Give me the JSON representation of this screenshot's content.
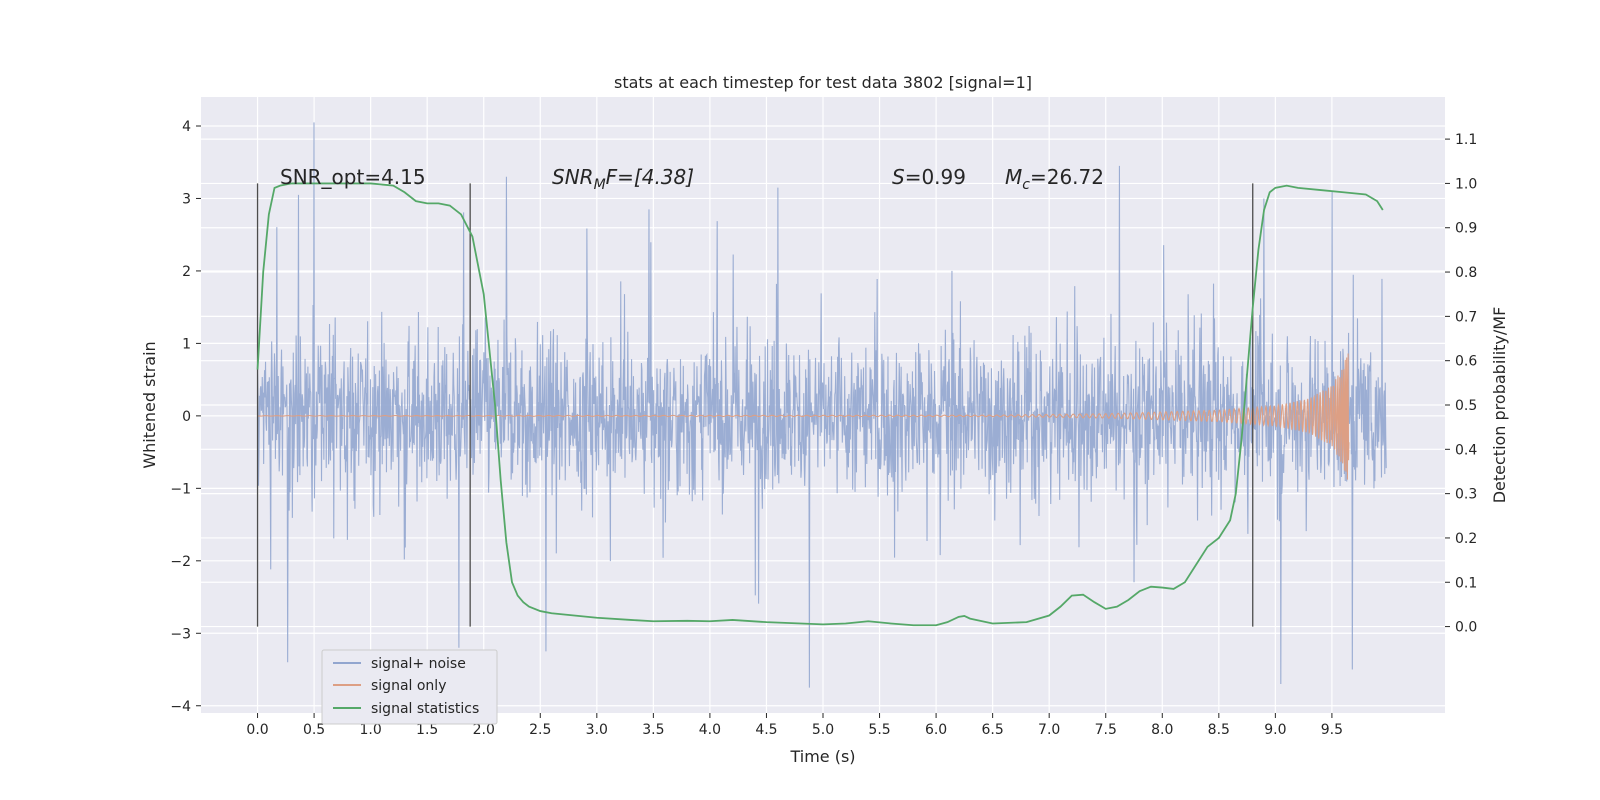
{
  "chart_data": {
    "type": "line",
    "title": "stats at each timestep for test data 3802 [signal=1]",
    "xlabel": "Time (s)",
    "ylabel_left": "Whitened strain",
    "ylabel_right": "Detection probability/MF",
    "xlim": [
      -0.5,
      10.5
    ],
    "ylim_left": [
      -4.1,
      4.4
    ],
    "ylim_right": [
      -0.195,
      1.195
    ],
    "x_ticks": [
      "0.0",
      "0.5",
      "1.0",
      "1.5",
      "2.0",
      "2.5",
      "3.0",
      "3.5",
      "4.0",
      "4.5",
      "5.0",
      "5.5",
      "6.0",
      "6.5",
      "7.0",
      "7.5",
      "8.0",
      "8.5",
      "9.0",
      "9.5"
    ],
    "x_tick_values": [
      0,
      0.5,
      1,
      1.5,
      2,
      2.5,
      3,
      3.5,
      4,
      4.5,
      5,
      5.5,
      6,
      6.5,
      7,
      7.5,
      8,
      8.5,
      9,
      9.5
    ],
    "y_left_ticks": [
      "4",
      "3",
      "2",
      "1",
      "0",
      "−1",
      "−2",
      "−3",
      "−4"
    ],
    "y_left_tick_values": [
      4,
      3,
      2,
      1,
      0,
      -1,
      -2,
      -3,
      -4
    ],
    "y_right_ticks": [
      "1.1",
      "1.0",
      "0.9",
      "0.8",
      "0.7",
      "0.6",
      "0.5",
      "0.4",
      "0.3",
      "0.2",
      "0.1",
      "0.0"
    ],
    "y_right_tick_values": [
      1.1,
      1.0,
      0.9,
      0.8,
      0.7,
      0.6,
      0.5,
      0.4,
      0.3,
      0.2,
      0.1,
      0.0
    ],
    "grid": true,
    "legend_position": "lower-left",
    "annotations": {
      "snr_opt": "SNR_opt=4.15",
      "snr_mf_main": "SNR",
      "snr_mf_sub": "M",
      "snr_mf_rest": "F=[4.38]",
      "s_main": "S",
      "s_value": "=0.99",
      "mc_main": "M",
      "mc_sub": "c",
      "mc_value": "=26.72"
    },
    "vertical_markers_x": [
      0,
      1.88,
      8.8
    ],
    "series": [
      {
        "name": "signal+ noise",
        "color": "#92a6cf",
        "x_range": [
          0,
          9.98
        ],
        "noise_amplitude_typical": 1.4,
        "noise_peak_examples": [
          {
            "x": 0.5,
            "y": 4.05
          },
          {
            "x": 0.36,
            "y": 3.05
          },
          {
            "x": 1.78,
            "y": -3.2
          },
          {
            "x": 2.55,
            "y": -3.25
          },
          {
            "x": 4.88,
            "y": -3.75
          },
          {
            "x": 7.62,
            "y": 3.45
          },
          {
            "x": 9.05,
            "y": -3.7
          },
          {
            "x": 9.68,
            "y": -3.5
          },
          {
            "x": 2.2,
            "y": 3.3
          },
          {
            "x": 4.6,
            "y": 3.15
          },
          {
            "x": 8.9,
            "y": 3.0
          },
          {
            "x": 9.5,
            "y": 3.1
          }
        ]
      },
      {
        "name": "signal only",
        "color": "#dd9f84",
        "x_range": [
          0,
          9.65
        ],
        "envelope": [
          [
            0,
            0.003
          ],
          [
            6.5,
            0.01
          ],
          [
            7.5,
            0.03
          ],
          [
            8.5,
            0.08
          ],
          [
            9.0,
            0.14
          ],
          [
            9.3,
            0.24
          ],
          [
            9.5,
            0.42
          ],
          [
            9.6,
            0.7
          ],
          [
            9.65,
            0.95
          ]
        ]
      },
      {
        "name": "signal statistics",
        "color": "#55a868",
        "x": [
          0,
          0.05,
          0.1,
          0.15,
          0.2,
          0.3,
          0.5,
          0.7,
          1.0,
          1.2,
          1.3,
          1.4,
          1.5,
          1.6,
          1.7,
          1.8,
          1.9,
          2.0,
          2.1,
          2.15,
          2.2,
          2.25,
          2.3,
          2.35,
          2.4,
          2.5,
          2.6,
          2.8,
          3.0,
          3.3,
          3.5,
          3.8,
          4.0,
          4.2,
          4.5,
          5.0,
          5.2,
          5.4,
          5.6,
          5.8,
          6.0,
          6.1,
          6.2,
          6.25,
          6.3,
          6.5,
          6.8,
          7.0,
          7.1,
          7.2,
          7.3,
          7.4,
          7.5,
          7.6,
          7.7,
          7.8,
          7.9,
          8.0,
          8.1,
          8.2,
          8.3,
          8.4,
          8.5,
          8.6,
          8.65,
          8.7,
          8.75,
          8.8,
          8.85,
          8.9,
          8.95,
          9.0,
          9.1,
          9.2,
          9.4,
          9.6,
          9.8,
          9.9,
          9.95
        ],
        "y": [
          0.58,
          0.8,
          0.93,
          0.99,
          0.995,
          1.0,
          1.0,
          1.0,
          1.0,
          0.995,
          0.98,
          0.96,
          0.955,
          0.955,
          0.95,
          0.93,
          0.88,
          0.75,
          0.5,
          0.33,
          0.19,
          0.1,
          0.07,
          0.055,
          0.045,
          0.035,
          0.03,
          0.025,
          0.02,
          0.015,
          0.012,
          0.013,
          0.012,
          0.015,
          0.01,
          0.005,
          0.007,
          0.012,
          0.007,
          0.003,
          0.003,
          0.01,
          0.022,
          0.024,
          0.018,
          0.007,
          0.01,
          0.025,
          0.045,
          0.07,
          0.072,
          0.055,
          0.04,
          0.045,
          0.06,
          0.08,
          0.09,
          0.088,
          0.085,
          0.1,
          0.14,
          0.18,
          0.2,
          0.24,
          0.3,
          0.42,
          0.57,
          0.72,
          0.85,
          0.94,
          0.98,
          0.99,
          0.995,
          0.99,
          0.985,
          0.98,
          0.975,
          0.96,
          0.94
        ]
      }
    ]
  }
}
